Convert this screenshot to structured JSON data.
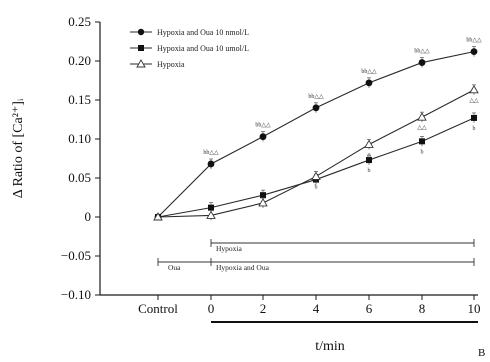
{
  "chart_data": {
    "type": "line",
    "title": "",
    "xlabel": "t/min",
    "ylabel": "Δ Ratio of [Ca²⁺]ᵢ",
    "categories": [
      "Control",
      "0",
      "2",
      "4",
      "6",
      "8",
      "10"
    ],
    "ylim": [
      -0.1,
      0.25
    ],
    "yticks": [
      "0.25",
      "0.20",
      "0.15",
      "0.10",
      "0.05",
      "0",
      "−0.05",
      "−0.10"
    ],
    "legend_position": "top-left",
    "series": [
      {
        "name": "Hypoxia and Oua 10 nmol/L",
        "marker": "filled-circle",
        "values": [
          0,
          0.068,
          0.103,
          0.14,
          0.172,
          0.198,
          0.212
        ],
        "sig": [
          "",
          "bb△△",
          "bb△△",
          "bb△△",
          "bb△△",
          "bb△△",
          "bb△△"
        ]
      },
      {
        "name": "Hypoxia and Oua 10 umol/L",
        "marker": "filled-square",
        "values": [
          0,
          0.012,
          0.028,
          0.048,
          0.073,
          0.097,
          0.127
        ],
        "sig": [
          "",
          "",
          "",
          "",
          "b",
          "b",
          "b"
        ]
      },
      {
        "name": "Hypoxia",
        "marker": "open-triangle",
        "values": [
          0,
          0.002,
          0.018,
          0.052,
          0.093,
          0.128,
          0.163
        ],
        "sig": [
          "",
          "",
          "",
          "b",
          "△",
          "△△",
          "△△"
        ]
      }
    ],
    "grid": false
  },
  "bars": {
    "hypoxia_label": "Hypoxia",
    "oua_label": "Oua",
    "hypoxia_oua_label": "Hypoxia and Oua"
  },
  "corner_label": "B"
}
